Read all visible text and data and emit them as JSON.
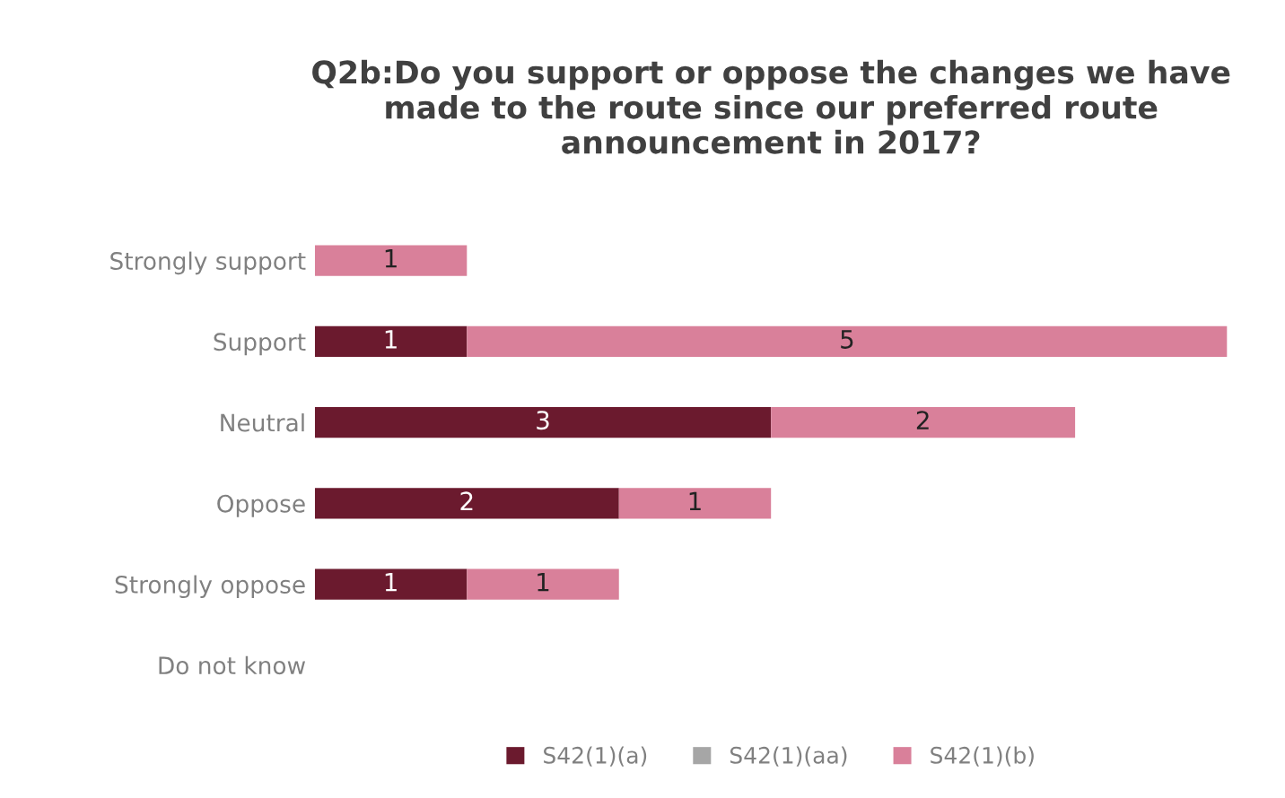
{
  "chart_data": {
    "type": "bar",
    "orientation": "horizontal",
    "stacked": true,
    "title": "Q2b:Do you support or oppose the changes we have made to the route since our preferred route announcement in 2017?",
    "categories": [
      "Strongly support",
      "Support",
      "Neutral",
      "Oppose",
      "Strongly oppose",
      "Do not know"
    ],
    "series": [
      {
        "name": "S42(1)(a)",
        "color": "#6b1a2e",
        "values": [
          null,
          1,
          3,
          2,
          1,
          null
        ]
      },
      {
        "name": "S42(1)(aa)",
        "color": "#a6a6a6",
        "values": [
          null,
          null,
          null,
          null,
          null,
          null
        ]
      },
      {
        "name": "S42(1)(b)",
        "color": "#d9809a",
        "values": [
          1,
          5,
          2,
          1,
          1,
          null
        ]
      }
    ],
    "data_labels": true,
    "legend": "bottom",
    "grid": false,
    "tick_labels": "y"
  }
}
